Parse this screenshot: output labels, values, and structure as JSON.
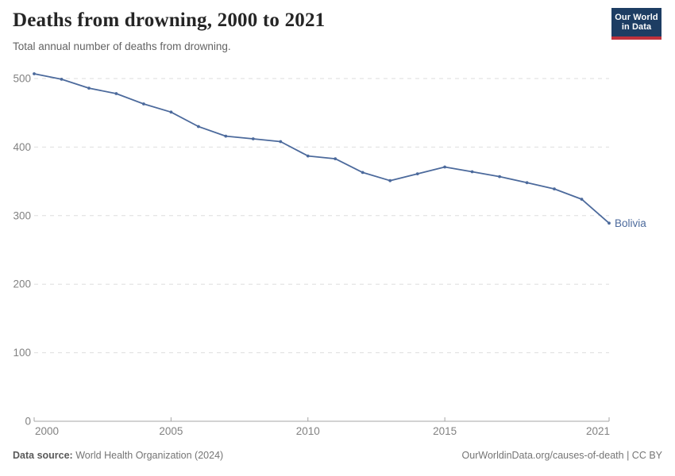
{
  "header": {
    "title": "Deaths from drowning, 2000 to 2021",
    "subtitle": "Total annual number of deaths from drowning.",
    "logo": {
      "line1": "Our World",
      "line2": "in Data"
    }
  },
  "chart_data": {
    "type": "line",
    "title": "Deaths from drowning, 2000 to 2021",
    "xlabel": "",
    "ylabel": "",
    "x": [
      2000,
      2001,
      2002,
      2003,
      2004,
      2005,
      2006,
      2007,
      2008,
      2009,
      2010,
      2011,
      2012,
      2013,
      2014,
      2015,
      2016,
      2017,
      2018,
      2019,
      2020,
      2021
    ],
    "series": [
      {
        "name": "Bolivia",
        "color": "#4c6a9c",
        "values": [
          507,
          499,
          486,
          478,
          463,
          451,
          430,
          416,
          412,
          408,
          387,
          383,
          363,
          351,
          361,
          371,
          364,
          357,
          348,
          339,
          324,
          289
        ]
      }
    ],
    "xticks": [
      2000,
      2005,
      2010,
      2015,
      2021
    ],
    "yticks": [
      0,
      100,
      200,
      300,
      400,
      500
    ],
    "xlim": [
      2000,
      2021
    ],
    "ylim": [
      0,
      500
    ],
    "grid": "horizontal-dashed",
    "legend": "end-of-line-label"
  },
  "footer": {
    "source_label": "Data source:",
    "source_value": " World Health Organization (2024)",
    "credit_link": "OurWorldinData.org/causes-of-death",
    "credit_license": " | CC BY"
  },
  "colors": {
    "line": "#4c6a9c",
    "gridline": "#dedede",
    "axis": "#a5a5a5",
    "tick_label": "#828282",
    "logo_bg": "#1d3d63",
    "logo_stripe": "#c0323c"
  }
}
